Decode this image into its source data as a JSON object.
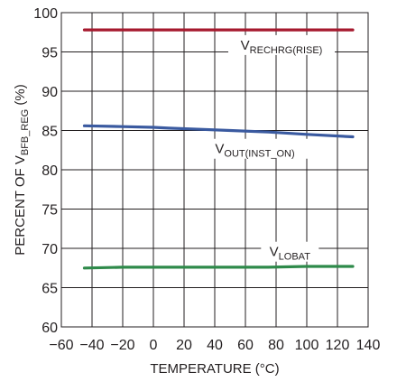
{
  "chart_data": {
    "type": "line",
    "xlabel": "TEMPERATURE (°C)",
    "ylabel": {
      "main": "PERCENT OF V",
      "sub": "BFB_REG",
      "tail": " (%)"
    },
    "xlim": [
      -60,
      140
    ],
    "ylim": [
      60,
      100
    ],
    "xticks": [
      -60,
      -40,
      -20,
      0,
      20,
      40,
      60,
      80,
      100,
      120,
      140
    ],
    "yticks": [
      60,
      65,
      70,
      75,
      80,
      85,
      90,
      95,
      100
    ],
    "grid": true,
    "series": [
      {
        "label_main": "V",
        "label_sub": "RECHRG(RISE)",
        "color": "#a6192e",
        "x": [
          -45,
          0,
          50,
          100,
          130
        ],
        "y": [
          97.8,
          97.8,
          97.8,
          97.8,
          97.8
        ]
      },
      {
        "label_main": "V",
        "label_sub": "OUT(INST_ON)",
        "color": "#3a5aa0",
        "x": [
          -45,
          -20,
          0,
          10,
          25,
          50,
          75,
          100,
          130
        ],
        "y": [
          85.6,
          85.5,
          85.4,
          85.3,
          85.2,
          85.0,
          84.8,
          84.5,
          84.2
        ]
      },
      {
        "label_main": "V",
        "label_sub": "LOBAT",
        "color": "#2e8a4a",
        "x": [
          -45,
          -20,
          0,
          25,
          50,
          75,
          100,
          130
        ],
        "y": [
          67.5,
          67.6,
          67.6,
          67.6,
          67.6,
          67.6,
          67.7,
          67.7
        ]
      }
    ]
  }
}
